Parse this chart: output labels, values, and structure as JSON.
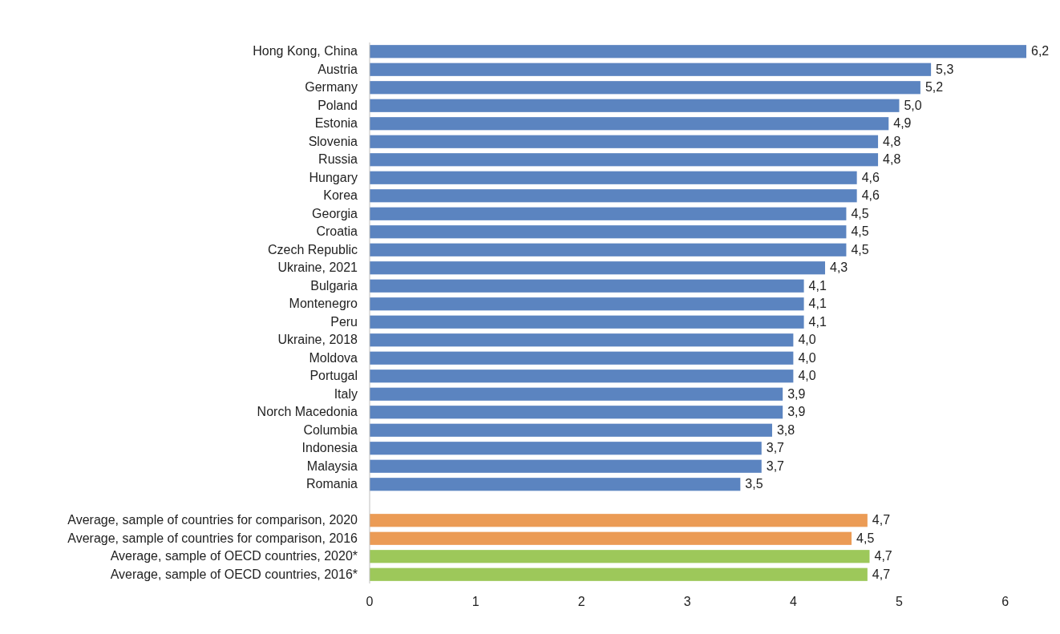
{
  "chart_data": {
    "type": "bar",
    "orientation": "horizontal",
    "categories": [
      "Hong Kong, China",
      "Austria",
      "Germany",
      "Poland",
      "Estonia",
      "Slovenia",
      "Russia",
      "Hungary",
      "Korea",
      "Georgia",
      "Croatia",
      "Czech Republic",
      "Ukraine, 2021",
      "Bulgaria",
      "Montenegro",
      "Peru",
      "Ukraine, 2018",
      "Moldova",
      "Portugal",
      "Italy",
      "Norch Macedonia",
      "Columbia",
      "Indonesia",
      "Malaysia",
      "Romania",
      null,
      "Average, sample of countries for comparison, 2020",
      "Average, sample of countries for comparison, 2016",
      "Average, sample of OECD countries, 2020*",
      "Average, sample of OECD countries, 2016*"
    ],
    "values": [
      6.2,
      5.3,
      5.2,
      5.0,
      4.9,
      4.8,
      4.8,
      4.6,
      4.6,
      4.5,
      4.5,
      4.5,
      4.3,
      4.1,
      4.1,
      4.1,
      4.0,
      4.0,
      4.0,
      3.9,
      3.9,
      3.8,
      3.7,
      3.7,
      3.5,
      null,
      4.7,
      4.55,
      4.72,
      4.7
    ],
    "value_labels": [
      "6,2",
      "5,3",
      "5,2",
      "5,0",
      "4,9",
      "4,8",
      "4,8",
      "4,6",
      "4,6",
      "4,5",
      "4,5",
      "4,5",
      "4,3",
      "4,1",
      "4,1",
      "4,1",
      "4,0",
      "4,0",
      "4,0",
      "3,9",
      "3,9",
      "3,8",
      "3,7",
      "3,7",
      "3,5",
      null,
      "4,7",
      "4,5",
      "4,7",
      "4,7"
    ],
    "colors": [
      "#5b84c0",
      "#5b84c0",
      "#5b84c0",
      "#5b84c0",
      "#5b84c0",
      "#5b84c0",
      "#5b84c0",
      "#5b84c0",
      "#5b84c0",
      "#5b84c0",
      "#5b84c0",
      "#5b84c0",
      "#5b84c0",
      "#5b84c0",
      "#5b84c0",
      "#5b84c0",
      "#5b84c0",
      "#5b84c0",
      "#5b84c0",
      "#5b84c0",
      "#5b84c0",
      "#5b84c0",
      "#5b84c0",
      "#5b84c0",
      "#5b84c0",
      null,
      "#eb9b55",
      "#eb9b55",
      "#9dc85a",
      "#9dc85a"
    ],
    "xlim": [
      0,
      6.2
    ],
    "xticks": [
      0,
      1,
      2,
      3,
      4,
      5,
      6
    ],
    "grid": false
  }
}
